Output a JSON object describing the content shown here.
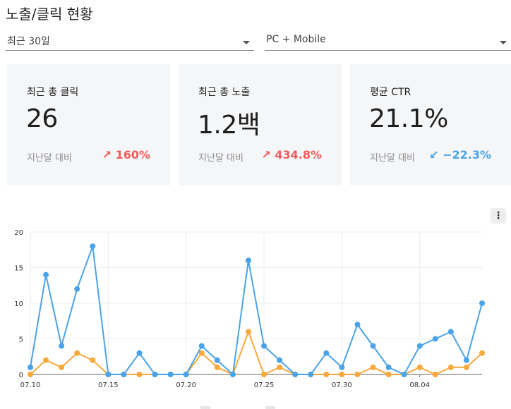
{
  "page": {
    "title": "노출/클릭 현황"
  },
  "filters": {
    "period": "최근 30일",
    "device": "PC + Mobile"
  },
  "cards": [
    {
      "label": "최근 총 클릭",
      "value": "26",
      "compare_label": "지난달 대비",
      "change": "160%",
      "change_arrow": "↗",
      "trend": "up"
    },
    {
      "label": "최근 총 노출",
      "value": "1.2백",
      "compare_label": "지난달 대비",
      "change": "434.8%",
      "change_arrow": "↗",
      "trend": "up"
    },
    {
      "label": "평균 CTR",
      "value": "21.1%",
      "compare_label": "지난달 대비",
      "change": "−22.3%",
      "change_arrow": "↙",
      "trend": "down"
    }
  ],
  "colors": {
    "accent_up": "#f05a5a",
    "accent_down": "#4aa3e8",
    "series_blue": "#4aa3e8",
    "series_orange": "#f8a93c"
  },
  "more_button_icon": "more-vert-icon",
  "chart_data": {
    "type": "line",
    "x": [
      "07.10",
      "07.11",
      "07.12",
      "07.13",
      "07.14",
      "07.15",
      "07.16",
      "07.17",
      "07.18",
      "07.19",
      "07.20",
      "07.21",
      "07.22",
      "07.23",
      "07.24",
      "07.25",
      "07.26",
      "07.27",
      "07.28",
      "07.29",
      "07.30",
      "07.31",
      "08.01",
      "08.02",
      "08.03",
      "08.04",
      "08.05",
      "08.06",
      "08.07",
      "08.08"
    ],
    "xtick_labels": [
      "07.10",
      "07.15",
      "07.20",
      "07.25",
      "07.30",
      "08.04"
    ],
    "series": [
      {
        "color": "#4aa3e8",
        "values": [
          1,
          14,
          4,
          12,
          18,
          0,
          0,
          3,
          0,
          0,
          0,
          4,
          2,
          0,
          16,
          4,
          2,
          0,
          0,
          3,
          1,
          7,
          4,
          1,
          0,
          4,
          5,
          6,
          2,
          10
        ]
      },
      {
        "color": "#f8a93c",
        "values": [
          0,
          2,
          1,
          3,
          2,
          0,
          0,
          0,
          0,
          0,
          0,
          3,
          1,
          0,
          6,
          0,
          1,
          0,
          0,
          0,
          0,
          0,
          1,
          0,
          0,
          1,
          0,
          1,
          1,
          3
        ]
      }
    ],
    "yticks": [
      0,
      5,
      10,
      15,
      20
    ],
    "ylim": [
      0,
      20
    ],
    "grid": true
  }
}
